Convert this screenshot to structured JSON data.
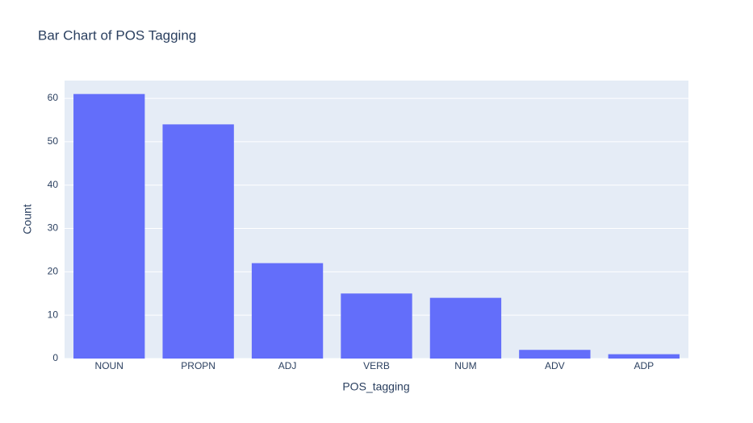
{
  "chart_data": {
    "type": "bar",
    "title": "Bar Chart of POS Tagging",
    "x_label": "POS_tagging",
    "y_label": "Count",
    "categories": [
      "NOUN",
      "PROPN",
      "ADJ",
      "VERB",
      "NUM",
      "ADV",
      "ADP"
    ],
    "values": [
      61,
      54,
      22,
      15,
      14,
      2,
      1
    ],
    "color": "#636efa",
    "ylim": [
      0,
      64.1
    ],
    "yticks": [
      0,
      10,
      20,
      30,
      40,
      50,
      60
    ],
    "grid": true
  }
}
